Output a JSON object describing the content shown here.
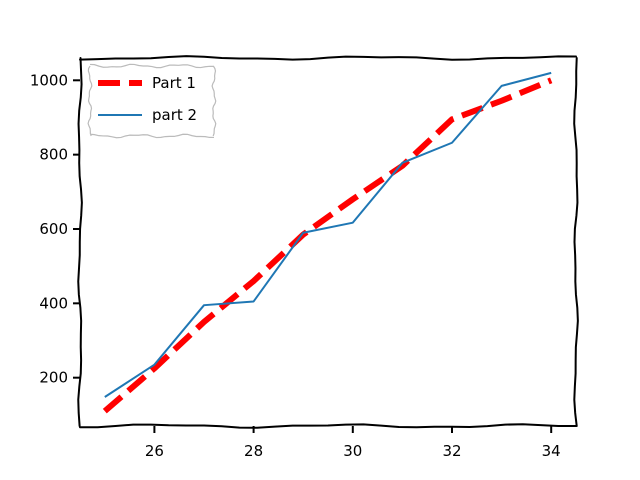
{
  "chart_data": {
    "type": "line",
    "title": "",
    "xlabel": "",
    "ylabel": "",
    "xlim": [
      24.5,
      34.5
    ],
    "ylim": [
      70,
      1060
    ],
    "xticks": [
      26,
      28,
      30,
      32,
      34
    ],
    "yticks": [
      200,
      400,
      600,
      800,
      1000
    ],
    "legend_position": "top-left",
    "grid": false,
    "series": [
      {
        "name": "Part 1",
        "color": "#ff0000",
        "style": "dashed",
        "x": [
          25,
          26,
          27,
          28,
          29,
          30,
          31,
          32,
          33,
          34
        ],
        "y": [
          110,
          225,
          350,
          460,
          585,
          680,
          770,
          895,
          945,
          1000
        ]
      },
      {
        "name": "part 2",
        "color": "#1f77b4",
        "style": "solid",
        "x": [
          25,
          26,
          27,
          28,
          29,
          30,
          31,
          32,
          33,
          34
        ],
        "y": [
          148,
          235,
          395,
          405,
          590,
          617,
          778,
          832,
          985,
          1020
        ]
      }
    ]
  }
}
